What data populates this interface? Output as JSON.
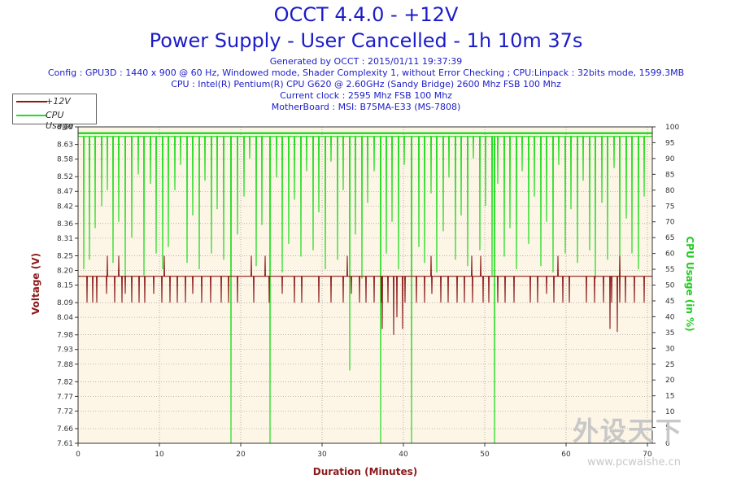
{
  "header": {
    "title": "OCCT 4.4.0 - +12V",
    "subtitle": "Power Supply - User Cancelled - 1h 10m 37s",
    "info_lines": [
      "Generated by OCCT : 2015/01/11 19:37:39",
      "Config : GPU3D : 1440 x 900 @ 60 Hz, Windowed mode, Shader Complexity 1, without Error Checking ; CPU:Linpack : 32bits mode, 1599.3MB",
      "CPU : Intel(R) Pentium(R) CPU G620 @ 2.60GHz (Sandy Bridge) 2600 Mhz FSB 100 Mhz",
      "Current clock : 2595 Mhz FSB 100 Mhz",
      "MotherBoard : MSI: B75MA-E33 (MS-7808)"
    ]
  },
  "watermark": {
    "logo": "外设天下",
    "url": "www.pcwaishe.cn"
  },
  "colors": {
    "voltage": "#8b1a1a",
    "cpu": "#22dd22",
    "plot_bg": "#fdf5e6",
    "grid": "#8a8a8a",
    "title": "#1c1cc8"
  },
  "chart_data": {
    "type": "line",
    "title": "Power Supply - User Cancelled - 1h 10m 37s",
    "xlabel": "Duration (Minutes)",
    "ylabel": "Voltage (V)",
    "y2label": "CPU Usage (in %)",
    "xlim": [
      0,
      70.6
    ],
    "ylim": [
      7.61,
      8.69
    ],
    "y2lim": [
      0,
      100
    ],
    "xticks": [
      0,
      10,
      20,
      30,
      40,
      50,
      60,
      70
    ],
    "yticks": [
      7.61,
      7.66,
      7.72,
      7.77,
      7.82,
      7.88,
      7.93,
      7.98,
      8.04,
      8.09,
      8.15,
      8.2,
      8.25,
      8.31,
      8.36,
      8.42,
      8.47,
      8.52,
      8.58,
      8.63,
      8.69
    ],
    "ytick_labels": [
      "7.61",
      "7.66",
      "7.72",
      "7.77",
      "7.82",
      "7.88",
      "7.93",
      "7.98",
      "8.04",
      "8.09",
      "8.15",
      "8.20",
      "8.25",
      "8.31",
      "8.36",
      "8.42",
      "8.47",
      "8.52",
      "8.58",
      "8.63",
      "8.69"
    ],
    "y2ticks": [
      0,
      5,
      10,
      15,
      20,
      25,
      30,
      35,
      40,
      45,
      50,
      55,
      60,
      65,
      70,
      75,
      80,
      85,
      90,
      95,
      100
    ],
    "grid": true,
    "legend_position": "top-left",
    "series": [
      {
        "name": "+12V",
        "baseline": 8.18,
        "dips": [
          [
            1.1,
            8.09
          ],
          [
            1.8,
            8.09
          ],
          [
            2.3,
            8.09
          ],
          [
            3.5,
            8.12
          ],
          [
            4.5,
            8.09
          ],
          [
            5.4,
            8.09
          ],
          [
            5.8,
            8.12
          ],
          [
            6.6,
            8.09
          ],
          [
            7.5,
            8.09
          ],
          [
            8.2,
            8.09
          ],
          [
            9.3,
            8.12
          ],
          [
            10.3,
            8.09
          ],
          [
            11.3,
            8.09
          ],
          [
            12.2,
            8.09
          ],
          [
            13.2,
            8.09
          ],
          [
            14.1,
            8.12
          ],
          [
            15.2,
            8.09
          ],
          [
            16.3,
            8.09
          ],
          [
            17.6,
            8.09
          ],
          [
            18.5,
            8.09
          ],
          [
            19.6,
            8.09
          ],
          [
            21.6,
            8.09
          ],
          [
            23.5,
            8.09
          ],
          [
            25.1,
            8.12
          ],
          [
            26.6,
            8.09
          ],
          [
            27.5,
            8.09
          ],
          [
            29.6,
            8.09
          ],
          [
            31.1,
            8.09
          ],
          [
            32.6,
            8.09
          ],
          [
            33.6,
            8.12
          ],
          [
            34.6,
            8.09
          ],
          [
            35.4,
            8.09
          ],
          [
            36.4,
            8.09
          ],
          [
            37.3,
            8.09
          ],
          [
            38.1,
            8.09
          ],
          [
            39.2,
            8.04
          ],
          [
            40.2,
            8.09
          ],
          [
            41.6,
            8.09
          ],
          [
            42.6,
            8.09
          ],
          [
            43.5,
            8.12
          ],
          [
            44.6,
            8.09
          ],
          [
            45.5,
            8.09
          ],
          [
            46.6,
            8.09
          ],
          [
            47.5,
            8.09
          ],
          [
            48.5,
            8.09
          ],
          [
            49.8,
            8.09
          ],
          [
            50.5,
            8.09
          ],
          [
            51.6,
            8.09
          ],
          [
            52.5,
            8.09
          ],
          [
            53.6,
            8.09
          ],
          [
            55.6,
            8.09
          ],
          [
            56.5,
            8.09
          ],
          [
            57.6,
            8.12
          ],
          [
            58.5,
            8.09
          ],
          [
            59.6,
            8.09
          ],
          [
            60.4,
            8.09
          ],
          [
            62.5,
            8.09
          ],
          [
            63.5,
            8.09
          ],
          [
            64.6,
            8.09
          ],
          [
            65.6,
            8.09
          ],
          [
            66.6,
            8.09
          ],
          [
            67.3,
            8.09
          ],
          [
            68.4,
            8.09
          ],
          [
            69.6,
            8.09
          ]
        ],
        "spikes": [
          [
            3.6,
            8.25
          ],
          [
            5.0,
            8.25
          ],
          [
            10.6,
            8.25
          ],
          [
            21.3,
            8.25
          ],
          [
            23.0,
            8.25
          ],
          [
            33.1,
            8.25
          ],
          [
            43.4,
            8.25
          ],
          [
            48.4,
            8.25
          ],
          [
            49.5,
            8.25
          ],
          [
            59.0,
            8.25
          ],
          [
            66.6,
            8.25
          ]
        ],
        "deep_dips": [
          [
            37.4,
            8.0
          ],
          [
            38.8,
            7.98
          ],
          [
            39.9,
            8.0
          ],
          [
            65.4,
            8.0
          ],
          [
            66.3,
            7.99
          ]
        ]
      },
      {
        "name": "CPU Usage",
        "baseline": 97,
        "dips": [
          [
            0.7,
            55
          ],
          [
            1.4,
            58
          ],
          [
            2.1,
            68
          ],
          [
            2.9,
            75
          ],
          [
            3.6,
            80
          ],
          [
            4.3,
            57
          ],
          [
            5.0,
            70
          ],
          [
            5.8,
            52
          ],
          [
            6.6,
            65
          ],
          [
            7.4,
            85
          ],
          [
            8.1,
            53
          ],
          [
            8.9,
            82
          ],
          [
            9.6,
            60
          ],
          [
            10.4,
            55
          ],
          [
            11.1,
            62
          ],
          [
            11.9,
            80
          ],
          [
            12.6,
            88
          ],
          [
            13.4,
            57
          ],
          [
            14.1,
            72
          ],
          [
            14.9,
            55
          ],
          [
            15.6,
            83
          ],
          [
            16.4,
            60
          ],
          [
            17.1,
            74
          ],
          [
            17.9,
            58
          ],
          [
            19.6,
            66
          ],
          [
            20.4,
            78
          ],
          [
            21.1,
            90
          ],
          [
            21.9,
            56
          ],
          [
            22.6,
            69
          ],
          [
            24.4,
            84
          ],
          [
            25.1,
            54
          ],
          [
            25.9,
            63
          ],
          [
            26.6,
            77
          ],
          [
            27.4,
            59
          ],
          [
            28.1,
            86
          ],
          [
            28.9,
            61
          ],
          [
            29.6,
            73
          ],
          [
            30.4,
            55
          ],
          [
            31.1,
            89
          ],
          [
            31.9,
            58
          ],
          [
            32.6,
            80
          ],
          [
            33.4,
            23
          ],
          [
            34.1,
            66
          ],
          [
            34.9,
            52
          ],
          [
            35.6,
            76
          ],
          [
            36.4,
            86
          ],
          [
            37.9,
            60
          ],
          [
            38.6,
            70
          ],
          [
            39.4,
            55
          ],
          [
            40.1,
            88
          ],
          [
            41.9,
            62
          ],
          [
            42.6,
            57
          ],
          [
            43.4,
            79
          ],
          [
            44.1,
            54
          ],
          [
            44.9,
            67
          ],
          [
            45.6,
            84
          ],
          [
            46.4,
            58
          ],
          [
            47.1,
            72
          ],
          [
            47.9,
            56
          ],
          [
            48.6,
            90
          ],
          [
            49.4,
            61
          ],
          [
            50.1,
            75
          ],
          [
            50.9,
            53
          ],
          [
            51.6,
            82
          ],
          [
            52.4,
            59
          ],
          [
            53.1,
            68
          ],
          [
            53.9,
            55
          ],
          [
            54.6,
            86
          ],
          [
            55.4,
            63
          ],
          [
            56.1,
            78
          ],
          [
            56.9,
            56
          ],
          [
            57.6,
            70
          ],
          [
            58.4,
            54
          ],
          [
            59.1,
            88
          ],
          [
            59.9,
            60
          ],
          [
            60.6,
            74
          ],
          [
            61.4,
            57
          ],
          [
            62.1,
            83
          ],
          [
            62.9,
            61
          ],
          [
            63.6,
            52
          ],
          [
            64.4,
            76
          ],
          [
            65.1,
            58
          ],
          [
            65.9,
            87
          ],
          [
            66.6,
            53
          ],
          [
            67.4,
            71
          ],
          [
            68.1,
            60
          ],
          [
            68.9,
            55
          ],
          [
            69.6,
            78
          ]
        ],
        "deep_dips": [
          [
            18.8,
            0
          ],
          [
            23.6,
            0
          ],
          [
            37.2,
            0
          ],
          [
            41.0,
            0
          ],
          [
            51.2,
            0
          ]
        ]
      }
    ]
  }
}
